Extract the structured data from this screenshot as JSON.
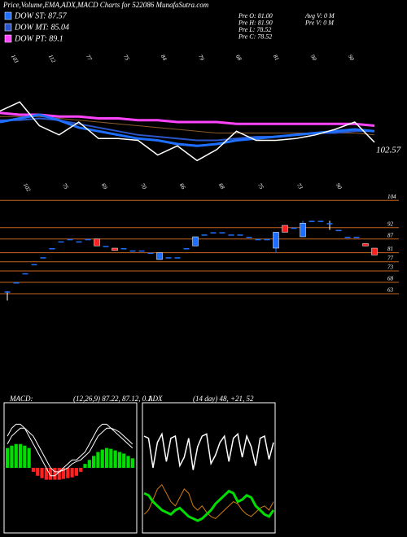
{
  "header": {
    "title": "Price,Volume,EMA,ADX,MACD Charts for 522086 MunafaSutra.com"
  },
  "legend": [
    {
      "label": "DOW ST: 87.57",
      "color": "#1e6fff"
    },
    {
      "label": "DOW MT: 85.04",
      "color": "#2b55c8"
    },
    {
      "label": "DOW PT: 89.1",
      "color": "#ff44ff"
    }
  ],
  "stats": [
    {
      "text": "Pre  O: 81.00",
      "col": 0
    },
    {
      "text": "Pre  H: 81.90",
      "col": 0
    },
    {
      "text": "Pre  L: 78.52",
      "col": 0
    },
    {
      "text": "Pre  C: 78.52",
      "col": 0
    },
    {
      "text": "Avg  V: 0  M",
      "col": 1
    },
    {
      "text": "Pre  V: 0  M",
      "col": 1
    }
  ],
  "chart_data": [
    {
      "type": "line",
      "ylim": [
        60,
        140
      ],
      "top_labels": [
        "103",
        "112",
        "77",
        "75",
        "84",
        "79",
        "68",
        "81",
        "90",
        "90"
      ],
      "bottom_labels": [
        "102",
        "75",
        "69",
        "70",
        "66",
        "68",
        "75",
        "73",
        "90"
      ],
      "last_label": "102.57",
      "series": [
        {
          "color": "#8b5a2b",
          "width": 1,
          "values": [
            103,
            103,
            103,
            102,
            101,
            100,
            99,
            98,
            97,
            96,
            95,
            94,
            94,
            94,
            94,
            94,
            94,
            94,
            94,
            93
          ]
        },
        {
          "name": "DOW PT: 89.1",
          "color": "#ff44ff",
          "width": 3,
          "values": [
            105,
            104,
            104,
            103,
            103,
            102,
            102,
            101,
            101,
            100,
            100,
            100,
            99,
            99,
            99,
            99,
            99,
            99,
            99,
            98
          ]
        },
        {
          "name": "DOW MT: 85.04",
          "color": "#2b55c8",
          "width": 2,
          "values": [
            101,
            101,
            102,
            101,
            99,
            97,
            95,
            93,
            92,
            91,
            90,
            90,
            91,
            92,
            92,
            93,
            94,
            94,
            95,
            95
          ]
        },
        {
          "name": "DOW ST: 87.57",
          "color": "#1e6fff",
          "width": 3,
          "values": [
            100,
            102,
            104,
            101,
            97,
            95,
            93,
            91,
            90,
            88,
            87,
            88,
            90,
            91,
            92,
            93,
            94,
            95,
            96,
            95
          ]
        },
        {
          "color": "#ffffff",
          "width": 1.5,
          "values": [
            106,
            111,
            98,
            93,
            100,
            91,
            91,
            90,
            82,
            87,
            79,
            85,
            95,
            90,
            90,
            91,
            93,
            96,
            100,
            89
          ]
        }
      ]
    },
    {
      "type": "candlestick",
      "ylim": [
        58,
        108
      ],
      "yticks": [
        104,
        92,
        87,
        81,
        77,
        73,
        68,
        63
      ],
      "up_color": "#1e6fff",
      "down_color": "#ff2020",
      "line_color": "#c8641e",
      "open": [
        64,
        68,
        72,
        76,
        79,
        83,
        86,
        87,
        86,
        87,
        87,
        84,
        83,
        83,
        82,
        82,
        81,
        78,
        79,
        79,
        83,
        84,
        89,
        90,
        90,
        89,
        89,
        88,
        87,
        87,
        83,
        93,
        92,
        88,
        95,
        95,
        94,
        91,
        88,
        88,
        85,
        83
      ],
      "high": [
        64,
        68,
        72,
        76,
        79,
        83,
        86,
        87,
        86,
        87,
        87,
        84,
        83,
        83,
        82,
        82,
        81,
        81,
        79,
        79,
        83,
        88,
        89,
        90,
        90,
        89,
        89,
        88,
        87,
        87,
        90,
        93,
        92,
        95,
        95,
        95,
        95,
        91,
        88,
        88,
        85,
        83
      ],
      "low": [
        60,
        68,
        72,
        76,
        79,
        83,
        86,
        87,
        86,
        87,
        84,
        84,
        82,
        83,
        82,
        82,
        81,
        78,
        79,
        79,
        83,
        84,
        89,
        90,
        90,
        89,
        89,
        88,
        87,
        87,
        81,
        90,
        92,
        88,
        95,
        95,
        91,
        91,
        88,
        88,
        84,
        80
      ],
      "close": [
        64,
        68,
        72,
        76,
        79,
        83,
        86,
        87,
        86,
        87,
        84,
        84,
        82,
        83,
        82,
        82,
        81,
        81,
        79,
        79,
        83,
        88,
        89,
        90,
        90,
        89,
        89,
        88,
        87,
        87,
        90,
        90,
        92,
        94,
        95,
        95,
        94,
        91,
        88,
        88,
        84,
        80
      ]
    },
    {
      "type": "macd",
      "title": "MACD:",
      "subtitle": "(12,26,9) 87.22, 87.12, 0.1",
      "ylim": [
        -8,
        8
      ],
      "histogram": [
        2.5,
        2.8,
        3,
        3,
        2.8,
        2.5,
        -0.5,
        -1,
        -1.3,
        -1.5,
        -1.5,
        -1.5,
        -1.5,
        -1.4,
        -1.3,
        -1.2,
        -1,
        -0.5,
        0.5,
        1,
        1.5,
        2,
        2.3,
        2.5,
        2.4,
        2.2,
        2,
        1.8,
        1.5,
        1.2
      ],
      "pos_color": "#00dd00",
      "neg_color": "#ff2020",
      "series": [
        {
          "color": "#ffffff",
          "values": [
            4,
            5,
            5.5,
            5.5,
            5,
            4,
            3,
            2,
            1,
            0,
            -1,
            -1,
            -0.5,
            0,
            0.5,
            1,
            1,
            1.5,
            2,
            3,
            4,
            5,
            5.5,
            5.5,
            5,
            4.5,
            4,
            3.5,
            3,
            2.5
          ]
        },
        {
          "color": "#ffffff",
          "values": [
            3,
            4,
            4.5,
            5,
            5,
            4.5,
            4,
            3,
            2,
            1,
            0,
            -0.5,
            -0.5,
            -0.3,
            0,
            0.5,
            0.8,
            1,
            1.5,
            2,
            3,
            4,
            4.5,
            5,
            5,
            4.8,
            4.5,
            4,
            3.5,
            3
          ]
        }
      ]
    },
    {
      "type": "line",
      "title": "ADX",
      "subtitle": "(14 day) 48, +21, 52",
      "ylim": [
        0,
        60
      ],
      "series": [
        {
          "color": "#ffffff",
          "width": 1.5,
          "values": [
            45,
            44,
            30,
            42,
            46,
            33,
            44,
            45,
            31,
            35,
            44,
            29,
            40,
            45,
            46,
            32,
            36,
            42,
            45,
            33,
            44,
            46,
            35,
            45,
            40,
            31,
            44,
            45,
            34,
            42
          ]
        },
        {
          "color": "#d07a10",
          "width": 1,
          "values": [
            8,
            10,
            15,
            20,
            22,
            18,
            14,
            12,
            16,
            20,
            18,
            12,
            10,
            12,
            9,
            7,
            6,
            8,
            10,
            12,
            14,
            13,
            10,
            8,
            7,
            9,
            11,
            12,
            10,
            14
          ]
        },
        {
          "color": "#00dd00",
          "width": 3,
          "values": [
            18,
            17,
            14,
            12,
            10,
            9,
            8,
            10,
            11,
            9,
            7,
            6,
            5,
            6,
            8,
            10,
            13,
            15,
            17,
            19,
            18,
            14,
            15,
            17,
            16,
            12,
            10,
            8,
            7,
            10
          ]
        }
      ]
    }
  ]
}
